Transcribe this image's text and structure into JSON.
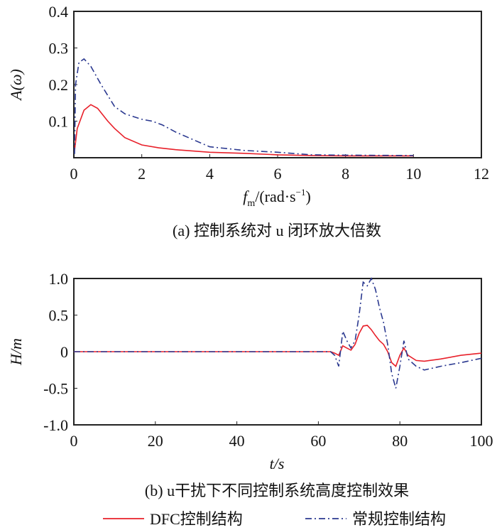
{
  "chart_data": [
    {
      "type": "line",
      "title": "(a) 控制系统对 u 闭环放大倍数",
      "xlabel": "f_m /(rad·s⁻¹)",
      "xlabel_main": "f",
      "xlabel_sub": "m",
      "xlabel_rest": "/(rad·s",
      "xlabel_sup": "−1",
      "xlabel_close": ")",
      "ylabel": "A(ω)",
      "xlim": [
        0,
        12
      ],
      "ylim": [
        0,
        0.4
      ],
      "xticks": [
        "0",
        "2",
        "4",
        "6",
        "8",
        "10",
        "12"
      ],
      "yticks": [
        "0.1",
        "0.2",
        "0.3",
        "0.4"
      ],
      "series": [
        {
          "name": "DFC控制结构",
          "color": "#e8202a",
          "dash": "",
          "points": [
            [
              0.02,
              0.02
            ],
            [
              0.1,
              0.08
            ],
            [
              0.3,
              0.13
            ],
            [
              0.5,
              0.145
            ],
            [
              0.7,
              0.135
            ],
            [
              1.0,
              0.1
            ],
            [
              1.2,
              0.08
            ],
            [
              1.5,
              0.055
            ],
            [
              2.0,
              0.035
            ],
            [
              2.5,
              0.027
            ],
            [
              3,
              0.022
            ],
            [
              4,
              0.015
            ],
            [
              5,
              0.012
            ],
            [
              6,
              0.008
            ],
            [
              7,
              0.006
            ],
            [
              8,
              0.005
            ],
            [
              10,
              0.005
            ]
          ]
        },
        {
          "name": "常规控制结构",
          "color": "#2b3990",
          "dash": "9,4,2,4",
          "points": [
            [
              0.02,
              0.01
            ],
            [
              0.05,
              0.2
            ],
            [
              0.15,
              0.26
            ],
            [
              0.3,
              0.27
            ],
            [
              0.5,
              0.25
            ],
            [
              0.8,
              0.2
            ],
            [
              1.0,
              0.17
            ],
            [
              1.2,
              0.14
            ],
            [
              1.5,
              0.12
            ],
            [
              2.0,
              0.105
            ],
            [
              2.3,
              0.1
            ],
            [
              2.6,
              0.09
            ],
            [
              3.0,
              0.07
            ],
            [
              3.5,
              0.05
            ],
            [
              4.0,
              0.03
            ],
            [
              4.5,
              0.025
            ],
            [
              5.0,
              0.02
            ],
            [
              6.0,
              0.015
            ],
            [
              7,
              0.008
            ],
            [
              8,
              0.007
            ],
            [
              10,
              0.006
            ]
          ]
        }
      ]
    },
    {
      "type": "line",
      "title": "(b) u干扰下不同控制系统高度控制效果",
      "xlabel": "t/s",
      "ylabel": "H/m",
      "xlim": [
        0,
        100
      ],
      "ylim": [
        -1,
        1
      ],
      "xticks": [
        "0",
        "20",
        "40",
        "60",
        "80",
        "100"
      ],
      "yticks": [
        "-1.0",
        "-0.5",
        "0",
        "0.5",
        "1.0"
      ],
      "series": [
        {
          "name": "DFC控制结构",
          "color": "#e8202a",
          "dash": "",
          "points": [
            [
              0,
              0
            ],
            [
              63,
              0
            ],
            [
              64,
              -0.02
            ],
            [
              65,
              -0.05
            ],
            [
              66,
              0.08
            ],
            [
              67,
              0.05
            ],
            [
              68,
              0.02
            ],
            [
              69,
              0.1
            ],
            [
              70,
              0.25
            ],
            [
              71,
              0.35
            ],
            [
              72,
              0.36
            ],
            [
              73,
              0.3
            ],
            [
              74,
              0.22
            ],
            [
              75,
              0.15
            ],
            [
              76,
              0.1
            ],
            [
              77,
              0
            ],
            [
              78,
              -0.15
            ],
            [
              79,
              -0.2
            ],
            [
              80,
              -0.05
            ],
            [
              81,
              0.05
            ],
            [
              82,
              -0.05
            ],
            [
              84,
              -0.12
            ],
            [
              86,
              -0.13
            ],
            [
              90,
              -0.1
            ],
            [
              95,
              -0.05
            ],
            [
              100,
              -0.02
            ]
          ]
        },
        {
          "name": "常规控制结构",
          "color": "#2b3990",
          "dash": "9,4,2,4",
          "points": [
            [
              0,
              0
            ],
            [
              63,
              0
            ],
            [
              64,
              -0.05
            ],
            [
              65,
              -0.2
            ],
            [
              66,
              0.28
            ],
            [
              67,
              0.15
            ],
            [
              68,
              0.05
            ],
            [
              69,
              0.15
            ],
            [
              70,
              0.5
            ],
            [
              71,
              0.95
            ],
            [
              72,
              0.9
            ],
            [
              73,
              1.0
            ],
            [
              74,
              0.85
            ],
            [
              75,
              0.6
            ],
            [
              76,
              0.4
            ],
            [
              77,
              0.1
            ],
            [
              78,
              -0.3
            ],
            [
              79,
              -0.5
            ],
            [
              80,
              -0.2
            ],
            [
              81,
              0.15
            ],
            [
              82,
              -0.1
            ],
            [
              84,
              -0.2
            ],
            [
              86,
              -0.25
            ],
            [
              90,
              -0.2
            ],
            [
              95,
              -0.15
            ],
            [
              100,
              -0.09
            ]
          ]
        }
      ]
    }
  ],
  "legend": [
    {
      "label": "DFC控制结构",
      "color": "#e8202a",
      "dash": ""
    },
    {
      "label": "常规控制结构",
      "color": "#2b3990",
      "dash": "9,4,2,4"
    }
  ]
}
